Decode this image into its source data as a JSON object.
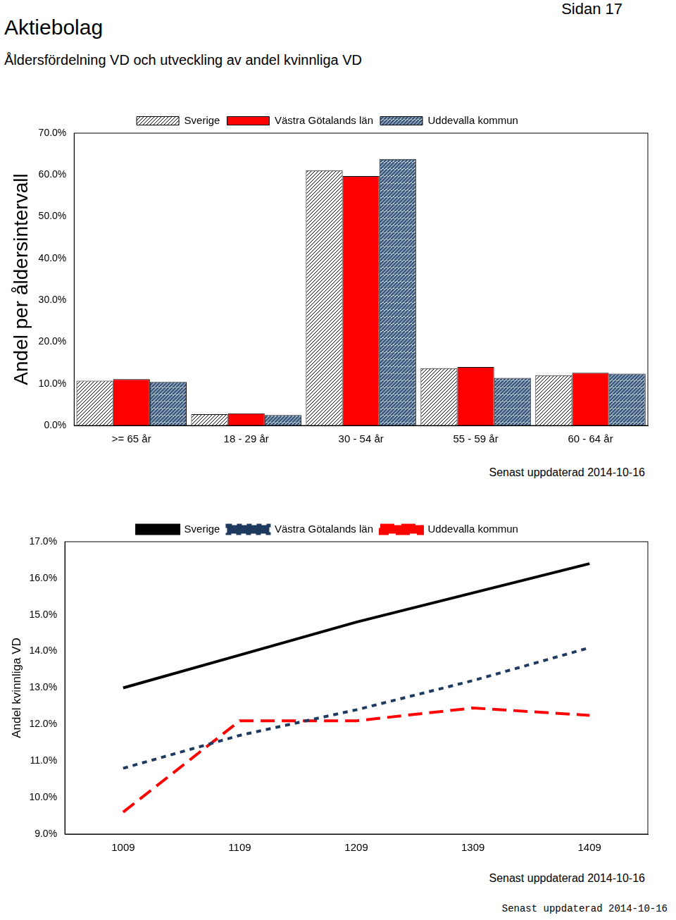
{
  "page": {
    "title": "Aktiebolag",
    "page_label": "Sidan 17",
    "subtitle": "Åldersfördelning VD och utveckling av andel kvinnliga VD",
    "footer": "Senast uppdaterad 2014-10-16"
  },
  "chart_data": [
    {
      "type": "bar",
      "y_label": "Andel per åldersintervall",
      "note": "Senast uppdaterad 2014-10-16",
      "categories": [
        ">= 65 år",
        "18 - 29 år",
        "30 - 54 år",
        "55 - 59 år",
        "60 - 64 år"
      ],
      "series": [
        {
          "name": "Sverige",
          "color": "#000000",
          "marker": "hatch",
          "values": [
            10.7,
            2.7,
            61.1,
            13.7,
            12.0
          ]
        },
        {
          "name": "Västra Götalands län",
          "color": "#ff0000",
          "marker": "solid",
          "values": [
            11.1,
            2.9,
            59.7,
            14.0,
            12.6
          ]
        },
        {
          "name": "Uddevalla kommun",
          "color": "#3b5a80",
          "marker": "hatch",
          "values": [
            10.4,
            2.5,
            63.8,
            11.4,
            12.4
          ]
        }
      ],
      "ylim": [
        0,
        70
      ],
      "yticks": [
        {
          "value": 0,
          "label": "0.0%"
        },
        {
          "value": 10,
          "label": "10.0%"
        },
        {
          "value": 20,
          "label": "20.0%"
        },
        {
          "value": 30,
          "label": "30.0%"
        },
        {
          "value": 40,
          "label": "40.0%"
        },
        {
          "value": 50,
          "label": "50.0%"
        },
        {
          "value": 60,
          "label": "60.0%"
        },
        {
          "value": 70,
          "label": "70.0%"
        }
      ],
      "grid": false,
      "legend": "top"
    },
    {
      "type": "line",
      "y_label": "Andel kvinnliga VD",
      "note": "Senast uppdaterad 2014-10-16",
      "categories": [
        "1009",
        "1109",
        "1209",
        "1309",
        "1409"
      ],
      "series": [
        {
          "name": "Sverige",
          "color": "#000000",
          "line_style": "solid",
          "values": [
            13.0,
            13.9,
            14.8,
            15.6,
            16.4
          ]
        },
        {
          "name": "Västra Götalands län",
          "color": "#1f3a5f",
          "line_style": "dotted",
          "values": [
            10.8,
            11.7,
            12.4,
            13.2,
            14.1
          ]
        },
        {
          "name": "Uddevalla kommun",
          "color": "#ff0000",
          "line_style": "dashed",
          "values": [
            9.6,
            12.1,
            12.1,
            12.45,
            12.25
          ]
        }
      ],
      "ylim": [
        9,
        17
      ],
      "yticks": [
        {
          "value": 9,
          "label": "9.0%"
        },
        {
          "value": 10,
          "label": "10.0%"
        },
        {
          "value": 11,
          "label": "11.0%"
        },
        {
          "value": 12,
          "label": "12.0%"
        },
        {
          "value": 13,
          "label": "13.0%"
        },
        {
          "value": 14,
          "label": "14.0%"
        },
        {
          "value": 15,
          "label": "15.0%"
        },
        {
          "value": 16,
          "label": "16.0%"
        },
        {
          "value": 17,
          "label": "17.0%"
        }
      ],
      "grid": false,
      "legend": "top"
    }
  ]
}
